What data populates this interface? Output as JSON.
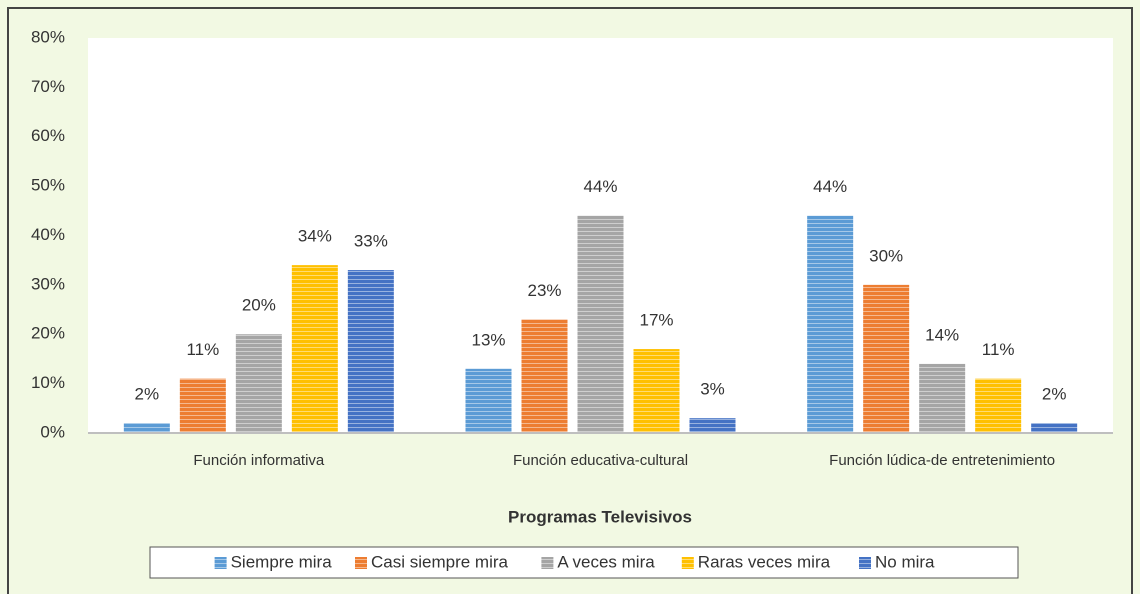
{
  "chart_data": {
    "type": "bar",
    "x_label": "Programas Televisivos",
    "categories": [
      "Función informativa",
      "Función educativa-cultural",
      "Función lúdica-de entretenimiento"
    ],
    "series": [
      {
        "name": "Siempre mira",
        "color": "#5b9bd5",
        "values": [
          2,
          13,
          44
        ],
        "value_labels": [
          "2%",
          "13%",
          "44%"
        ]
      },
      {
        "name": "Casi siempre mira",
        "color": "#ed7d31",
        "values": [
          11,
          23,
          30
        ],
        "value_labels": [
          "11%",
          "23%",
          "30%"
        ]
      },
      {
        "name": "A veces mira",
        "color": "#a5a5a5",
        "values": [
          20,
          44,
          14
        ],
        "value_labels": [
          "20%",
          "44%",
          "14%"
        ]
      },
      {
        "name": "Raras veces mira",
        "color": "#ffc000",
        "values": [
          34,
          17,
          11
        ],
        "value_labels": [
          "34%",
          "17%",
          "11%"
        ]
      },
      {
        "name": "No mira",
        "color": "#4472c4",
        "values": [
          33,
          3,
          2
        ],
        "value_labels": [
          "33%",
          "3%",
          "2%"
        ]
      }
    ],
    "ylim": [
      0,
      80
    ],
    "yticks": [
      {
        "value": 0,
        "label": "0%"
      },
      {
        "value": 10,
        "label": "10%"
      },
      {
        "value": 20,
        "label": "20%"
      },
      {
        "value": 30,
        "label": "30%"
      },
      {
        "value": 40,
        "label": "40%"
      },
      {
        "value": 50,
        "label": "50%"
      },
      {
        "value": 60,
        "label": "60%"
      },
      {
        "value": 70,
        "label": "70%"
      },
      {
        "value": 80,
        "label": "80%"
      }
    ],
    "grid": false,
    "legend": "bottom"
  }
}
